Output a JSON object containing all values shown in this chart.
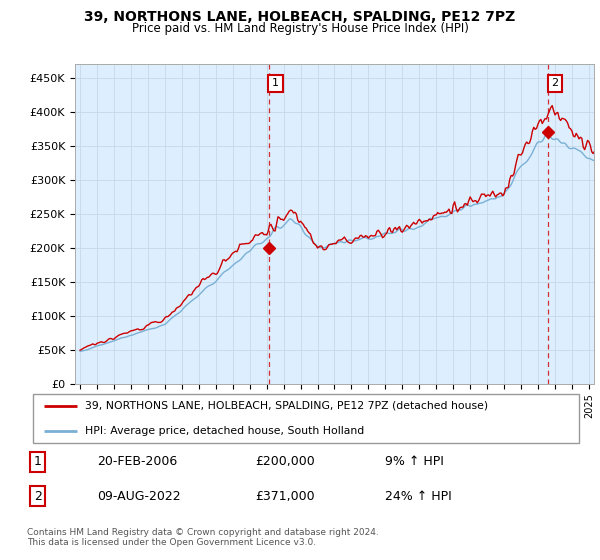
{
  "title": "39, NORTHONS LANE, HOLBEACH, SPALDING, PE12 7PZ",
  "subtitle": "Price paid vs. HM Land Registry's House Price Index (HPI)",
  "ylabel_ticks": [
    "£0",
    "£50K",
    "£100K",
    "£150K",
    "£200K",
    "£250K",
    "£300K",
    "£350K",
    "£400K",
    "£450K"
  ],
  "ytick_values": [
    0,
    50000,
    100000,
    150000,
    200000,
    250000,
    300000,
    350000,
    400000,
    450000
  ],
  "ylim": [
    0,
    470000
  ],
  "xlim_start": 1994.7,
  "xlim_end": 2025.3,
  "red_line_color": "#cc0000",
  "blue_line_color": "#7ab0d4",
  "chart_bg_color": "#ddeeff",
  "vline_color": "#cc0000",
  "transaction1_x": 2006.12,
  "transaction1_y": 200000,
  "transaction1_label": "1",
  "transaction2_x": 2022.6,
  "transaction2_y": 371000,
  "transaction2_label": "2",
  "legend_line1": "39, NORTHONS LANE, HOLBEACH, SPALDING, PE12 7PZ (detached house)",
  "legend_line2": "HPI: Average price, detached house, South Holland",
  "table_row1_num": "1",
  "table_row1_date": "20-FEB-2006",
  "table_row1_price": "£200,000",
  "table_row1_hpi": "9% ↑ HPI",
  "table_row2_num": "2",
  "table_row2_date": "09-AUG-2022",
  "table_row2_price": "£371,000",
  "table_row2_hpi": "24% ↑ HPI",
  "footer": "Contains HM Land Registry data © Crown copyright and database right 2024.\nThis data is licensed under the Open Government Licence v3.0.",
  "background_color": "#ffffff",
  "grid_color": "#c8d8e8"
}
